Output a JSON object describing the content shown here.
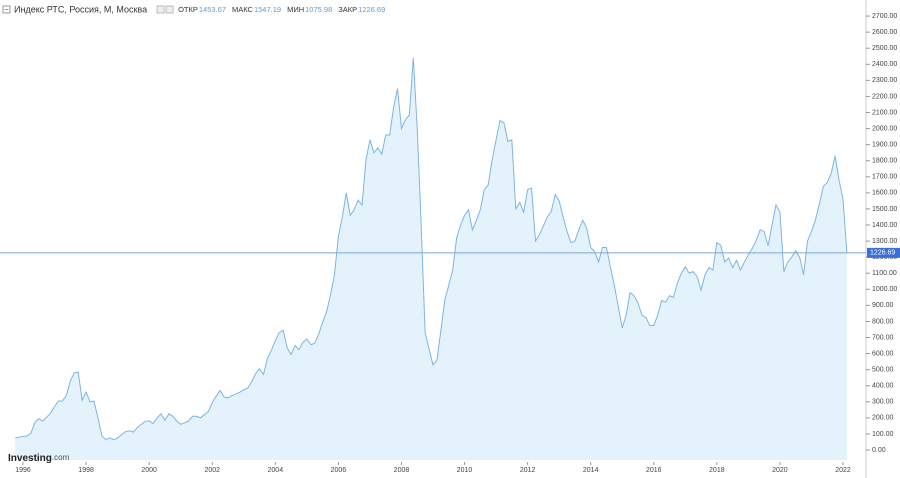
{
  "chart_data": {
    "type": "area",
    "title": "Индекс РТС, Россия, М, Москва",
    "ohlc": [
      {
        "label": "ОТКР",
        "value": 1453.67
      },
      {
        "label": "МАКС",
        "value": 1547.19
      },
      {
        "label": "МИН",
        "value": 1075.98
      },
      {
        "label": "ЗАКР",
        "value": 1226.69
      }
    ],
    "logo": [
      "Investing",
      ".com"
    ],
    "color": "#7cb5e4",
    "fill": "#e4f2fb",
    "x": [
      1995.75,
      1995.875,
      1996,
      1996.125,
      1996.25,
      1996.375,
      1996.5,
      1996.625,
      1996.75,
      1996.875,
      1997,
      1997.125,
      1997.25,
      1997.375,
      1997.5,
      1997.625,
      1997.75,
      1997.875,
      1998,
      1998.125,
      1998.25,
      1998.375,
      1998.5,
      1998.625,
      1998.75,
      1998.875,
      1999,
      1999.125,
      1999.25,
      1999.375,
      1999.5,
      1999.625,
      1999.75,
      1999.875,
      2000,
      2000.125,
      2000.25,
      2000.375,
      2000.5,
      2000.625,
      2000.75,
      2000.875,
      2001,
      2001.125,
      2001.25,
      2001.375,
      2001.5,
      2001.625,
      2001.75,
      2001.875,
      2002,
      2002.125,
      2002.25,
      2002.375,
      2002.5,
      2002.625,
      2002.75,
      2002.875,
      2003,
      2003.125,
      2003.25,
      2003.375,
      2003.5,
      2003.625,
      2003.75,
      2003.875,
      2004,
      2004.125,
      2004.25,
      2004.375,
      2004.5,
      2004.625,
      2004.75,
      2004.875,
      2005,
      2005.125,
      2005.25,
      2005.375,
      2005.5,
      2005.625,
      2005.75,
      2005.875,
      2006,
      2006.125,
      2006.25,
      2006.375,
      2006.5,
      2006.625,
      2006.75,
      2006.875,
      2007,
      2007.125,
      2007.25,
      2007.375,
      2007.5,
      2007.625,
      2007.75,
      2007.875,
      2008,
      2008.125,
      2008.25,
      2008.375,
      2008.5,
      2008.625,
      2008.75,
      2008.875,
      2009,
      2009.125,
      2009.25,
      2009.375,
      2009.5,
      2009.625,
      2009.75,
      2009.875,
      2010,
      2010.125,
      2010.25,
      2010.375,
      2010.5,
      2010.625,
      2010.75,
      2010.875,
      2011,
      2011.125,
      2011.25,
      2011.375,
      2011.5,
      2011.625,
      2011.75,
      2011.875,
      2012,
      2012.125,
      2012.25,
      2012.375,
      2012.5,
      2012.625,
      2012.75,
      2012.875,
      2013,
      2013.125,
      2013.25,
      2013.375,
      2013.5,
      2013.625,
      2013.75,
      2013.875,
      2014,
      2014.125,
      2014.25,
      2014.375,
      2014.5,
      2014.625,
      2014.75,
      2014.875,
      2015,
      2015.125,
      2015.25,
      2015.375,
      2015.5,
      2015.625,
      2015.75,
      2015.875,
      2016,
      2016.125,
      2016.25,
      2016.375,
      2016.5,
      2016.625,
      2016.75,
      2016.875,
      2017,
      2017.125,
      2017.25,
      2017.375,
      2017.5,
      2017.625,
      2017.75,
      2017.875,
      2018,
      2018.125,
      2018.25,
      2018.375,
      2018.5,
      2018.625,
      2018.75,
      2018.875,
      2019,
      2019.125,
      2019.25,
      2019.375,
      2019.5,
      2019.625,
      2019.75,
      2019.875,
      2020,
      2020.125,
      2020.25,
      2020.375,
      2020.5,
      2020.625,
      2020.75,
      2020.875,
      2021,
      2021.125,
      2021.25,
      2021.375,
      2021.5,
      2021.625,
      2021.75,
      2021.875,
      2022,
      2022.125
    ],
    "values": [
      75,
      80,
      85,
      87,
      105,
      170,
      195,
      180,
      205,
      230,
      270,
      305,
      305,
      340,
      430,
      480,
      485,
      310,
      360,
      300,
      305,
      200,
      90,
      65,
      75,
      65,
      75,
      95,
      115,
      120,
      112,
      140,
      160,
      178,
      182,
      165,
      200,
      225,
      185,
      225,
      210,
      180,
      160,
      170,
      180,
      210,
      210,
      200,
      220,
      240,
      295,
      335,
      370,
      330,
      325,
      338,
      350,
      360,
      375,
      385,
      425,
      475,
      505,
      470,
      570,
      620,
      680,
      730,
      745,
      635,
      595,
      650,
      625,
      670,
      690,
      655,
      665,
      720,
      795,
      860,
      965,
      1090,
      1330,
      1450,
      1600,
      1460,
      1495,
      1555,
      1525,
      1805,
      1930,
      1850,
      1880,
      1840,
      1960,
      1960,
      2130,
      2250,
      2000,
      2055,
      2085,
      2440,
      2000,
      1400,
      730,
      630,
      530,
      560,
      745,
      935,
      1025,
      1120,
      1320,
      1400,
      1460,
      1495,
      1370,
      1430,
      1495,
      1620,
      1650,
      1805,
      1930,
      2050,
      2035,
      1920,
      1930,
      1500,
      1540,
      1480,
      1620,
      1630,
      1300,
      1340,
      1395,
      1450,
      1485,
      1590,
      1550,
      1450,
      1360,
      1290,
      1300,
      1370,
      1430,
      1380,
      1260,
      1235,
      1170,
      1260,
      1260,
      1140,
      1025,
      890,
      760,
      840,
      980,
      960,
      915,
      840,
      825,
      775,
      775,
      840,
      930,
      920,
      960,
      950,
      1040,
      1100,
      1140,
      1100,
      1110,
      1080,
      995,
      1090,
      1135,
      1120,
      1290,
      1275,
      1170,
      1195,
      1135,
      1180,
      1120,
      1170,
      1215,
      1255,
      1305,
      1370,
      1360,
      1270,
      1400,
      1525,
      1480,
      1110,
      1170,
      1200,
      1240,
      1200,
      1090,
      1300,
      1360,
      1430,
      1530,
      1640,
      1665,
      1720,
      1830,
      1680,
      1560,
      1226.69
    ],
    "xlim": [
      1995.27,
      2022.73
    ],
    "xticks": [
      1996,
      1998,
      2000,
      2002,
      2004,
      2006,
      2008,
      2010,
      2012,
      2014,
      2016,
      2018,
      2020,
      2022
    ],
    "ylim": [
      -62,
      2800
    ],
    "yticks": [
      {
        "value": 0,
        "label": "0.00"
      },
      {
        "value": 100,
        "label": "100.00"
      },
      {
        "value": 200,
        "label": "200.00"
      },
      {
        "value": 300,
        "label": "300.00"
      },
      {
        "value": 400,
        "label": "400.00"
      },
      {
        "value": 500,
        "label": "500.00"
      },
      {
        "value": 600,
        "label": "600.00"
      },
      {
        "value": 700,
        "label": "700.00"
      },
      {
        "value": 800,
        "label": "800.00"
      },
      {
        "value": 900,
        "label": "900.00"
      },
      {
        "value": 1000,
        "label": "1000.00"
      },
      {
        "value": 1100,
        "label": "1100.00"
      },
      {
        "value": 1200,
        "label": "1200.00"
      },
      {
        "value": 1300,
        "label": "1300.00"
      },
      {
        "value": 1400,
        "label": "1400.00"
      },
      {
        "value": 1500,
        "label": "1500.00"
      },
      {
        "value": 1600,
        "label": "1600.00"
      },
      {
        "value": 1700,
        "label": "1700.00"
      },
      {
        "value": 1800,
        "label": "1800.00"
      },
      {
        "value": 1900,
        "label": "1900.00"
      },
      {
        "value": 2000,
        "label": "2000.00"
      },
      {
        "value": 2100,
        "label": "2100.00"
      },
      {
        "value": 2200,
        "label": "2200.00"
      },
      {
        "value": 2300,
        "label": "2300.00"
      },
      {
        "value": 2400,
        "label": "2400.00"
      },
      {
        "value": 2500,
        "label": "2500.00"
      },
      {
        "value": 2600,
        "label": "2600.00"
      },
      {
        "value": 2700,
        "label": "2700.00"
      }
    ],
    "grid": false
  }
}
